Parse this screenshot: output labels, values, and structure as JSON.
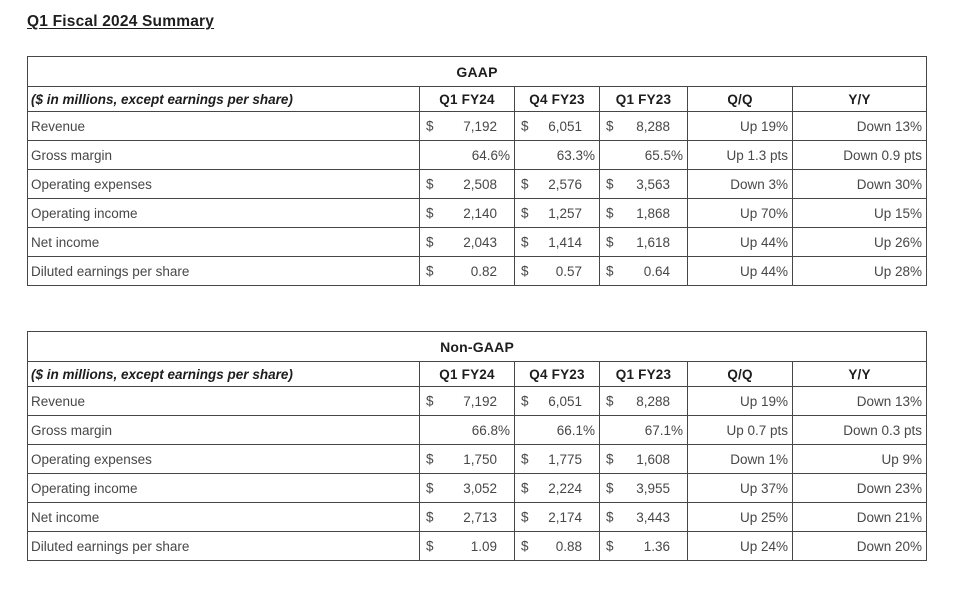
{
  "page_title": "Q1 Fiscal 2024 Summary",
  "colors": {
    "border": "#464646",
    "header_text": "#1d1d1d",
    "body_text": "#474747",
    "background": "#ffffff"
  },
  "tables": [
    {
      "title": "GAAP",
      "label_header": "($ in millions, except earnings per share)",
      "columns": [
        "Q1 FY24",
        "Q4 FY23",
        "Q1 FY23",
        "Q/Q",
        "Y/Y"
      ],
      "rows": [
        {
          "label": "Revenue",
          "cells": [
            {
              "prefix": "$",
              "value": "7,192"
            },
            {
              "prefix": "$",
              "value": "6,051"
            },
            {
              "prefix": "$",
              "value": "8,288"
            },
            {
              "value": "Up 19%"
            },
            {
              "value": "Down 13%"
            }
          ]
        },
        {
          "label": "Gross margin",
          "cells": [
            {
              "value": "64.6%"
            },
            {
              "value": "63.3%"
            },
            {
              "value": "65.5%"
            },
            {
              "value": "Up 1.3 pts"
            },
            {
              "value": "Down 0.9 pts"
            }
          ]
        },
        {
          "label": "Operating expenses",
          "cells": [
            {
              "prefix": "$",
              "value": "2,508"
            },
            {
              "prefix": "$",
              "value": "2,576"
            },
            {
              "prefix": "$",
              "value": "3,563"
            },
            {
              "value": "Down 3%"
            },
            {
              "value": "Down 30%"
            }
          ]
        },
        {
          "label": "Operating income",
          "cells": [
            {
              "prefix": "$",
              "value": "2,140"
            },
            {
              "prefix": "$",
              "value": "1,257"
            },
            {
              "prefix": "$",
              "value": "1,868"
            },
            {
              "value": "Up 70%"
            },
            {
              "value": "Up 15%"
            }
          ]
        },
        {
          "label": "Net income",
          "cells": [
            {
              "prefix": "$",
              "value": "2,043"
            },
            {
              "prefix": "$",
              "value": "1,414"
            },
            {
              "prefix": "$",
              "value": "1,618"
            },
            {
              "value": "Up 44%"
            },
            {
              "value": "Up 26%"
            }
          ]
        },
        {
          "label": "Diluted earnings per share",
          "cells": [
            {
              "prefix": "$",
              "value": "0.82"
            },
            {
              "prefix": "$",
              "value": "0.57"
            },
            {
              "prefix": "$",
              "value": "0.64"
            },
            {
              "value": "Up 44%"
            },
            {
              "value": "Up 28%"
            }
          ]
        }
      ]
    },
    {
      "title": "Non-GAAP",
      "label_header": "($ in millions, except earnings per share)",
      "columns": [
        "Q1 FY24",
        "Q4 FY23",
        "Q1 FY23",
        "Q/Q",
        "Y/Y"
      ],
      "rows": [
        {
          "label": "Revenue",
          "cells": [
            {
              "prefix": "$",
              "value": "7,192"
            },
            {
              "prefix": "$",
              "value": "6,051"
            },
            {
              "prefix": "$",
              "value": "8,288"
            },
            {
              "value": "Up 19%"
            },
            {
              "value": "Down 13%"
            }
          ]
        },
        {
          "label": "Gross margin",
          "cells": [
            {
              "value": "66.8%"
            },
            {
              "value": "66.1%"
            },
            {
              "value": "67.1%"
            },
            {
              "value": "Up 0.7 pts"
            },
            {
              "value": "Down 0.3 pts"
            }
          ]
        },
        {
          "label": "Operating expenses",
          "cells": [
            {
              "prefix": "$",
              "value": "1,750"
            },
            {
              "prefix": "$",
              "value": "1,775"
            },
            {
              "prefix": "$",
              "value": "1,608"
            },
            {
              "value": "Down 1%"
            },
            {
              "value": "Up 9%"
            }
          ]
        },
        {
          "label": "Operating income",
          "cells": [
            {
              "prefix": "$",
              "value": "3,052"
            },
            {
              "prefix": "$",
              "value": "2,224"
            },
            {
              "prefix": "$",
              "value": "3,955"
            },
            {
              "value": "Up 37%"
            },
            {
              "value": "Down 23%"
            }
          ]
        },
        {
          "label": "Net income",
          "cells": [
            {
              "prefix": "$",
              "value": "2,713"
            },
            {
              "prefix": "$",
              "value": "2,174"
            },
            {
              "prefix": "$",
              "value": "3,443"
            },
            {
              "value": "Up 25%"
            },
            {
              "value": "Down 21%"
            }
          ]
        },
        {
          "label": "Diluted earnings per share",
          "cells": [
            {
              "prefix": "$",
              "value": "1.09"
            },
            {
              "prefix": "$",
              "value": "0.88"
            },
            {
              "prefix": "$",
              "value": "1.36"
            },
            {
              "value": "Up 24%"
            },
            {
              "value": "Down 20%"
            }
          ]
        }
      ]
    }
  ]
}
